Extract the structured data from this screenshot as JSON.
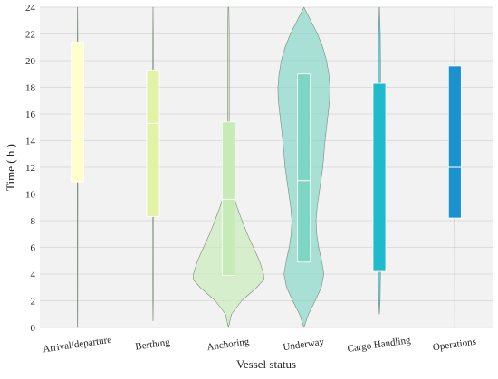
{
  "chart_data": {
    "type": "violin",
    "xlabel": "Vessel status",
    "ylabel": "Time ( h )",
    "ylim": [
      0,
      24
    ],
    "yticks": [
      0,
      2,
      4,
      6,
      8,
      10,
      12,
      14,
      16,
      18,
      20,
      22,
      24
    ],
    "grid": "horizontal",
    "categories": [
      "Arrival/departure",
      "Berthing",
      "Anchoring",
      "Underway",
      "Cargo Handling",
      "Operations"
    ],
    "series": [
      {
        "category": "Arrival/departure",
        "color": "#ffffcc",
        "box": {
          "q1": 10.9,
          "median": 14.2,
          "q3": 21.4
        },
        "density": [
          [
            0,
            0.003
          ],
          [
            2,
            0.005
          ],
          [
            6,
            0.006
          ],
          [
            8,
            0.006
          ],
          [
            10,
            0.007
          ],
          [
            12,
            0.007
          ],
          [
            14,
            0.006
          ],
          [
            16,
            0.006
          ],
          [
            18,
            0.006
          ],
          [
            20,
            0.007
          ],
          [
            22,
            0.006
          ],
          [
            24,
            0.002
          ]
        ]
      },
      {
        "category": "Berthing",
        "color": "#e2f3a6",
        "box": {
          "q1": 8.3,
          "median": 15.3,
          "q3": 19.3
        },
        "density": [
          [
            0.5,
            0.002
          ],
          [
            2,
            0.006
          ],
          [
            4,
            0.007
          ],
          [
            6,
            0.006
          ],
          [
            8,
            0.007
          ],
          [
            10,
            0.008
          ],
          [
            12,
            0.008
          ],
          [
            14,
            0.008
          ],
          [
            16,
            0.008
          ],
          [
            18,
            0.008
          ],
          [
            20,
            0.007
          ],
          [
            22,
            0.006
          ],
          [
            24,
            0.002
          ]
        ]
      },
      {
        "category": "Anchoring",
        "color": "#c6ebb7",
        "box": {
          "q1": 3.9,
          "median": 9.6,
          "q3": 15.4
        },
        "density": [
          [
            0,
            0
          ],
          [
            1,
            0.08
          ],
          [
            2,
            0.35
          ],
          [
            3,
            0.75
          ],
          [
            3.6,
            0.94
          ],
          [
            4,
            0.93
          ],
          [
            5,
            0.82
          ],
          [
            6,
            0.66
          ],
          [
            7,
            0.5
          ],
          [
            8,
            0.36
          ],
          [
            9,
            0.23
          ],
          [
            10,
            0.12
          ],
          [
            11,
            0.05
          ],
          [
            12,
            0.03
          ],
          [
            14,
            0.02
          ],
          [
            16,
            0.02
          ],
          [
            18,
            0.02
          ],
          [
            20,
            0.02
          ],
          [
            22,
            0.02
          ],
          [
            24,
            0.01
          ]
        ]
      },
      {
        "category": "Underway",
        "color": "#7fd5c4",
        "box": {
          "q1": 4.9,
          "median": 11.0,
          "q3": 19.0
        },
        "density": [
          [
            0,
            0
          ],
          [
            1,
            0.12
          ],
          [
            2,
            0.3
          ],
          [
            3,
            0.46
          ],
          [
            4,
            0.53
          ],
          [
            5,
            0.47
          ],
          [
            6,
            0.39
          ],
          [
            7,
            0.34
          ],
          [
            8,
            0.32
          ],
          [
            9,
            0.35
          ],
          [
            10,
            0.4
          ],
          [
            11,
            0.45
          ],
          [
            12,
            0.5
          ],
          [
            13,
            0.53
          ],
          [
            14,
            0.56
          ],
          [
            15,
            0.6
          ],
          [
            16,
            0.64
          ],
          [
            17,
            0.68
          ],
          [
            18,
            0.69
          ],
          [
            19,
            0.66
          ],
          [
            20,
            0.6
          ],
          [
            21,
            0.5
          ],
          [
            22,
            0.36
          ],
          [
            23,
            0.18
          ],
          [
            24,
            0
          ]
        ]
      },
      {
        "category": "Cargo Handling",
        "color": "#1fbacb",
        "box": {
          "q1": 4.2,
          "median": 10.0,
          "q3": 18.3
        },
        "density": [
          [
            1,
            0.002
          ],
          [
            2,
            0.02
          ],
          [
            4,
            0.03
          ],
          [
            6,
            0.025
          ],
          [
            8,
            0.03
          ],
          [
            10,
            0.035
          ],
          [
            12,
            0.035
          ],
          [
            14,
            0.03
          ],
          [
            16,
            0.03
          ],
          [
            18,
            0.03
          ],
          [
            20,
            0.03
          ],
          [
            22,
            0.025
          ],
          [
            24,
            0.003
          ]
        ]
      },
      {
        "category": "Operations",
        "color": "#1a92cf",
        "box": {
          "q1": 8.2,
          "median": 12.0,
          "q3": 19.6
        },
        "density": [
          [
            0,
            0.002
          ],
          [
            4,
            0.004
          ],
          [
            8,
            0.006
          ],
          [
            10,
            0.007
          ],
          [
            12,
            0.007
          ],
          [
            14,
            0.007
          ],
          [
            16,
            0.007
          ],
          [
            18,
            0.007
          ],
          [
            20,
            0.006
          ],
          [
            24,
            0.002
          ]
        ]
      }
    ]
  }
}
